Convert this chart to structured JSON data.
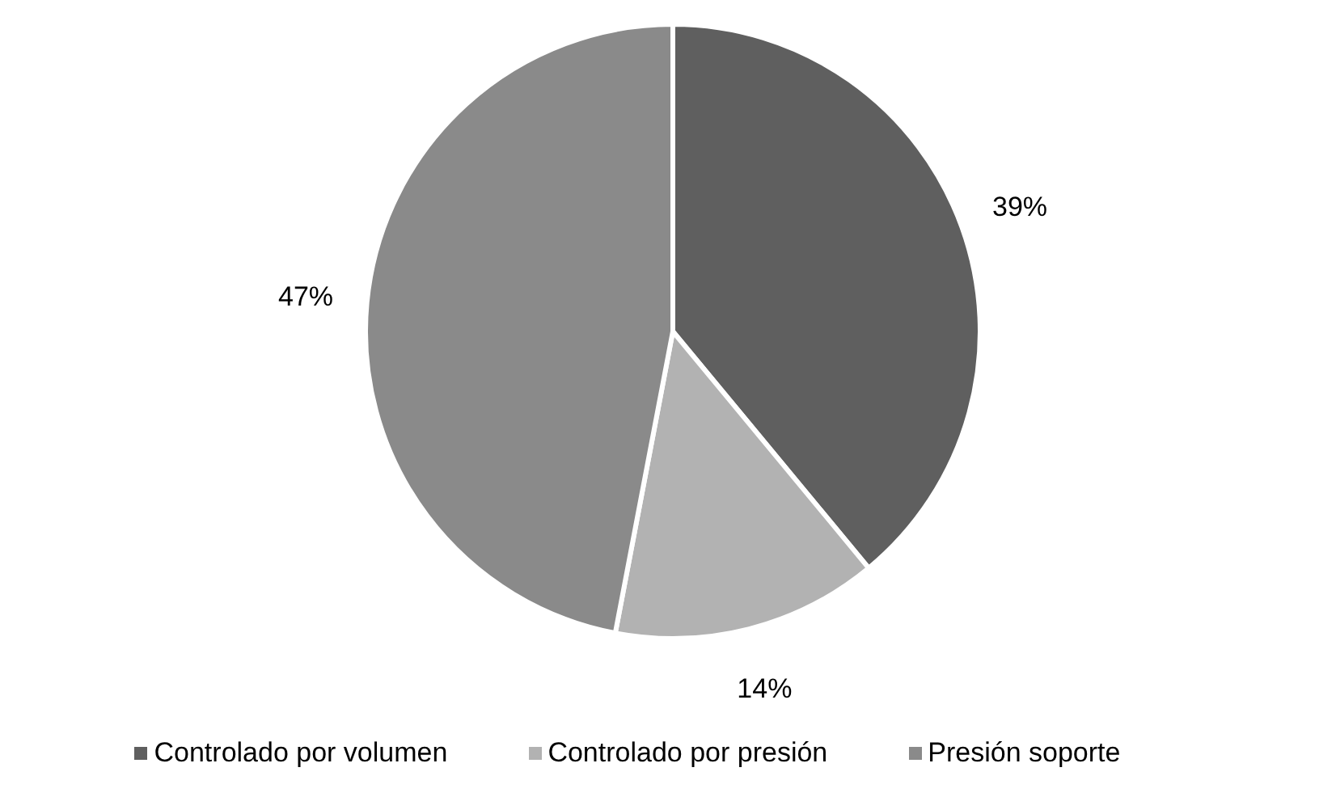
{
  "chart_data": {
    "type": "pie",
    "categories": [
      "Controlado por volumen",
      "Controlado por presión",
      "Presión soporte"
    ],
    "values": [
      39,
      14,
      47
    ],
    "colors": [
      "#5f5f5f",
      "#b2b2b2",
      "#8a8a8a"
    ],
    "value_labels": [
      "39%",
      "14%",
      "47%"
    ],
    "legend": "bottom"
  }
}
